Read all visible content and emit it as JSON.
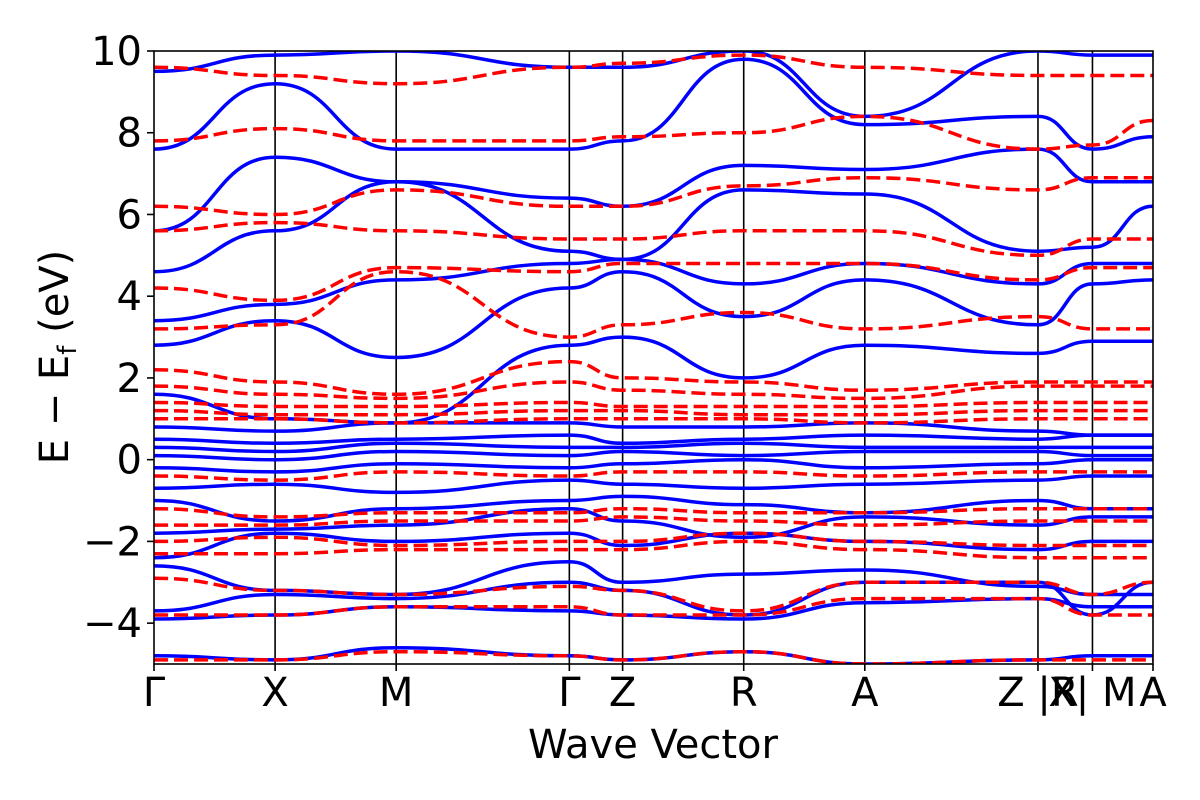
{
  "chart_data": {
    "type": "line",
    "xlabel": "Wave Vector",
    "ylabel_main": "E − E",
    "ylabel_sub": "f",
    "ylabel_unit": " (eV)",
    "ylim": [
      -5,
      10
    ],
    "yticks": [
      {
        "value": -4,
        "label": "−4"
      },
      {
        "value": -2,
        "label": "−2"
      },
      {
        "value": 0,
        "label": "0"
      },
      {
        "value": 2,
        "label": "2"
      },
      {
        "value": 4,
        "label": "4"
      },
      {
        "value": 6,
        "label": "6"
      },
      {
        "value": 8,
        "label": "8"
      },
      {
        "value": 10,
        "label": "10"
      }
    ],
    "xlim": [
      0,
      8.25
    ],
    "kpoints": [
      {
        "label": "Γ",
        "x": 0.0
      },
      {
        "label": "X",
        "x": 1.0
      },
      {
        "label": "M",
        "x": 2.0
      },
      {
        "label": "Γ",
        "x": 3.43
      },
      {
        "label": "Z",
        "x": 3.87
      },
      {
        "label": "R",
        "x": 4.87
      },
      {
        "label": "A",
        "x": 5.87
      },
      {
        "label": "Z |R",
        "x": 7.3
      },
      {
        "label": "X| M",
        "x": 7.75
      },
      {
        "label": "A",
        "x": 8.25
      }
    ],
    "vlines": [
      1.0,
      2.0,
      3.43,
      3.87,
      4.87,
      5.87,
      7.3,
      7.75
    ],
    "series": [
      {
        "style": "solid",
        "color": "#0000ff",
        "bands": [
          [
            -4.8,
            -4.9,
            -4.6,
            -4.8,
            -4.9,
            -4.7,
            -5.0,
            -4.9,
            -4.8,
            -4.8
          ],
          [
            -3.9,
            -3.8,
            -3.6,
            -3.7,
            -3.8,
            -3.9,
            -3.5,
            -3.4,
            -3.6,
            -3.6
          ],
          [
            -3.7,
            -3.3,
            -3.4,
            -3.0,
            -3.2,
            -3.8,
            -3.0,
            -3.0,
            -3.8,
            -3.0
          ],
          [
            -2.6,
            -3.2,
            -3.3,
            -2.5,
            -3.0,
            -2.8,
            -2.7,
            -3.1,
            -3.3,
            -3.3
          ],
          [
            -2.4,
            -1.8,
            -2.0,
            -1.8,
            -2.1,
            -1.8,
            -2.0,
            -2.2,
            -2.0,
            -2.0
          ],
          [
            -1.8,
            -1.7,
            -1.6,
            -1.2,
            -1.5,
            -1.9,
            -1.4,
            -1.6,
            -1.4,
            -1.4
          ],
          [
            -1.0,
            -1.5,
            -1.2,
            -1.0,
            -0.9,
            -1.1,
            -1.3,
            -1.0,
            -1.2,
            -1.2
          ],
          [
            -0.7,
            -0.6,
            -0.8,
            -0.5,
            -0.6,
            -0.7,
            -0.6,
            -0.5,
            -0.4,
            -0.4
          ],
          [
            -0.2,
            -0.3,
            -0.1,
            -0.2,
            -0.1,
            0.0,
            -0.2,
            -0.1,
            0.0,
            0.0
          ],
          [
            0.1,
            0.0,
            0.2,
            0.1,
            0.2,
            0.1,
            0.2,
            0.2,
            0.1,
            0.1
          ],
          [
            0.3,
            0.2,
            0.4,
            0.3,
            0.3,
            0.4,
            0.3,
            0.3,
            0.3,
            0.3
          ],
          [
            0.5,
            0.4,
            0.5,
            0.6,
            0.4,
            0.5,
            0.6,
            0.5,
            0.6,
            0.6
          ],
          [
            0.8,
            0.7,
            0.9,
            0.9,
            0.8,
            0.8,
            0.9,
            0.7,
            0.6,
            0.6
          ],
          [
            1.6,
            1.0,
            0.9,
            2.8,
            3.0,
            2.0,
            2.8,
            2.6,
            2.9,
            2.9
          ],
          [
            2.8,
            3.4,
            2.5,
            4.2,
            4.6,
            3.5,
            4.4,
            3.3,
            4.3,
            4.4
          ],
          [
            3.4,
            3.8,
            4.4,
            4.8,
            4.9,
            4.3,
            4.8,
            4.3,
            4.8,
            4.8
          ],
          [
            4.6,
            5.6,
            6.8,
            5.1,
            4.9,
            6.6,
            6.5,
            5.1,
            5.2,
            6.2
          ],
          [
            5.6,
            7.4,
            6.8,
            6.4,
            6.2,
            7.2,
            7.1,
            7.6,
            6.8,
            6.8
          ],
          [
            7.6,
            9.2,
            7.6,
            7.6,
            7.8,
            9.8,
            8.2,
            8.4,
            7.6,
            7.9
          ],
          [
            9.5,
            9.9,
            10.0,
            9.6,
            9.6,
            10.0,
            8.4,
            10.0,
            9.9,
            9.9
          ]
        ]
      },
      {
        "style": "dashed",
        "color": "#ff0000",
        "bands": [
          [
            -4.9,
            -4.9,
            -4.7,
            -4.8,
            -4.9,
            -4.7,
            -5.0,
            -4.9,
            -4.9,
            -4.9
          ],
          [
            -3.8,
            -3.8,
            -3.6,
            -3.6,
            -3.8,
            -3.8,
            -3.4,
            -3.4,
            -3.8,
            -3.8
          ],
          [
            -2.9,
            -3.2,
            -3.3,
            -3.1,
            -3.2,
            -3.7,
            -3.0,
            -3.0,
            -3.3,
            -3.0
          ],
          [
            -2.3,
            -2.3,
            -2.2,
            -2.2,
            -2.2,
            -2.0,
            -2.2,
            -2.4,
            -2.4,
            -2.4
          ],
          [
            -2.0,
            -1.9,
            -2.1,
            -2.0,
            -2.0,
            -1.8,
            -2.0,
            -2.1,
            -2.1,
            -2.1
          ],
          [
            -1.6,
            -1.6,
            -1.5,
            -1.5,
            -1.4,
            -1.5,
            -1.6,
            -1.5,
            -1.5,
            -1.5
          ],
          [
            -1.2,
            -1.4,
            -1.3,
            -1.3,
            -1.2,
            -1.3,
            -1.3,
            -1.2,
            -1.2,
            -1.2
          ],
          [
            -0.4,
            -0.5,
            -0.3,
            -0.4,
            -0.3,
            -0.3,
            -0.4,
            -0.3,
            -0.3,
            -0.3
          ],
          [
            1.0,
            1.0,
            0.9,
            1.0,
            1.0,
            1.0,
            0.9,
            1.0,
            1.0,
            1.0
          ],
          [
            1.2,
            1.1,
            1.1,
            1.2,
            1.2,
            1.1,
            1.1,
            1.2,
            1.2,
            1.2
          ],
          [
            1.4,
            1.3,
            1.3,
            1.4,
            1.3,
            1.3,
            1.3,
            1.4,
            1.4,
            1.4
          ],
          [
            1.8,
            1.6,
            1.5,
            1.9,
            1.7,
            1.6,
            1.5,
            1.8,
            1.8,
            1.8
          ],
          [
            2.2,
            1.9,
            1.6,
            2.4,
            2.0,
            1.9,
            1.7,
            1.9,
            1.9,
            1.9
          ],
          [
            3.2,
            3.3,
            4.6,
            3.0,
            3.3,
            3.6,
            3.2,
            3.5,
            3.2,
            3.2
          ],
          [
            4.2,
            3.9,
            4.7,
            4.6,
            4.8,
            4.8,
            4.8,
            4.4,
            4.7,
            4.7
          ],
          [
            5.6,
            5.8,
            5.6,
            5.4,
            5.4,
            5.6,
            5.6,
            5.0,
            5.4,
            5.4
          ],
          [
            6.2,
            6.0,
            6.6,
            6.2,
            6.2,
            6.7,
            6.9,
            6.6,
            6.9,
            6.9
          ],
          [
            7.8,
            8.1,
            7.8,
            7.8,
            7.9,
            8.0,
            8.4,
            7.6,
            7.7,
            8.3
          ],
          [
            9.6,
            9.4,
            9.2,
            9.6,
            9.7,
            9.9,
            9.6,
            9.4,
            9.4,
            9.4
          ]
        ]
      }
    ]
  }
}
